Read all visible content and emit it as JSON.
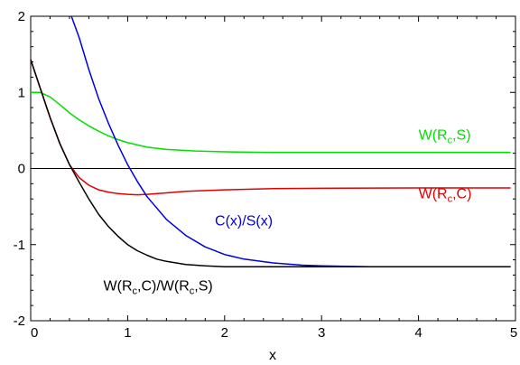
{
  "chart_data": {
    "type": "line",
    "title": "",
    "xlabel": "x",
    "ylabel": "",
    "xlim": [
      0,
      5
    ],
    "ylim": [
      -2,
      2
    ],
    "x_ticks": [
      "0",
      "1",
      "2",
      "3",
      "4",
      "5"
    ],
    "y_ticks": [
      "2",
      "1",
      "0",
      "-1",
      "-2"
    ],
    "grid": false,
    "zero_line": true,
    "series": [
      {
        "name": "W(Rc,S)",
        "label_parts": [
          "W(R",
          "c",
          ",S)"
        ],
        "color": "#00e000",
        "label_anchor": [
          4.0,
          0.38
        ],
        "points": [
          [
            0,
            1.0
          ],
          [
            0.1,
            1.0
          ],
          [
            0.2,
            0.94
          ],
          [
            0.3,
            0.84
          ],
          [
            0.4,
            0.73
          ],
          [
            0.5,
            0.64
          ],
          [
            0.6,
            0.56
          ],
          [
            0.7,
            0.49
          ],
          [
            0.8,
            0.43
          ],
          [
            0.9,
            0.38
          ],
          [
            1.0,
            0.34
          ],
          [
            1.2,
            0.28
          ],
          [
            1.4,
            0.25
          ],
          [
            1.7,
            0.23
          ],
          [
            2.0,
            0.22
          ],
          [
            2.5,
            0.21
          ],
          [
            3.0,
            0.21
          ],
          [
            4.0,
            0.21
          ],
          [
            4.95,
            0.21
          ]
        ]
      },
      {
        "name": "W(Rc,C)",
        "label_parts": [
          "W(R",
          "c",
          ",C)"
        ],
        "color": "#e00000",
        "label_anchor": [
          4.0,
          -0.39
        ],
        "points": [
          [
            0,
            1.43
          ],
          [
            0.1,
            1.05
          ],
          [
            0.2,
            0.67
          ],
          [
            0.3,
            0.33
          ],
          [
            0.4,
            0.05
          ],
          [
            0.5,
            -0.12
          ],
          [
            0.6,
            -0.22
          ],
          [
            0.7,
            -0.28
          ],
          [
            0.8,
            -0.31
          ],
          [
            0.9,
            -0.33
          ],
          [
            1.0,
            -0.34
          ],
          [
            1.1,
            -0.345
          ],
          [
            1.2,
            -0.34
          ],
          [
            1.4,
            -0.32
          ],
          [
            1.6,
            -0.3
          ],
          [
            2.0,
            -0.28
          ],
          [
            2.5,
            -0.265
          ],
          [
            3.0,
            -0.26
          ],
          [
            4.0,
            -0.255
          ],
          [
            4.95,
            -0.255
          ]
        ]
      },
      {
        "name": "C(x)/S(x)",
        "label_parts": [
          "C(x)/S(x)",
          "",
          ""
        ],
        "color": "#0000e0",
        "label_anchor": [
          1.9,
          -0.75
        ],
        "points": [
          [
            0.42,
            2.0
          ],
          [
            0.5,
            1.72
          ],
          [
            0.6,
            1.3
          ],
          [
            0.7,
            0.92
          ],
          [
            0.8,
            0.6
          ],
          [
            0.9,
            0.31
          ],
          [
            1.0,
            0.05
          ],
          [
            1.1,
            -0.17
          ],
          [
            1.2,
            -0.37
          ],
          [
            1.4,
            -0.67
          ],
          [
            1.6,
            -0.88
          ],
          [
            1.8,
            -1.03
          ],
          [
            2.0,
            -1.13
          ],
          [
            2.2,
            -1.19
          ],
          [
            2.5,
            -1.24
          ],
          [
            2.8,
            -1.27
          ],
          [
            3.0,
            -1.28
          ],
          [
            3.5,
            -1.29
          ],
          [
            4.0,
            -1.29
          ],
          [
            4.95,
            -1.29
          ]
        ]
      },
      {
        "name": "W(Rc,C)/W(Rc,S)",
        "label_parts": [
          "W(R",
          "c",
          ",C)/W(R",
          "c",
          ",S)"
        ],
        "color": "#000000",
        "label_anchor": [
          0.75,
          -1.6
        ],
        "points": [
          [
            0,
            1.43
          ],
          [
            0.1,
            1.05
          ],
          [
            0.2,
            0.67
          ],
          [
            0.3,
            0.33
          ],
          [
            0.4,
            0.05
          ],
          [
            0.5,
            -0.18
          ],
          [
            0.6,
            -0.4
          ],
          [
            0.7,
            -0.6
          ],
          [
            0.8,
            -0.76
          ],
          [
            0.9,
            -0.89
          ],
          [
            1.0,
            -1.0
          ],
          [
            1.1,
            -1.08
          ],
          [
            1.2,
            -1.14
          ],
          [
            1.3,
            -1.19
          ],
          [
            1.4,
            -1.22
          ],
          [
            1.6,
            -1.26
          ],
          [
            1.8,
            -1.28
          ],
          [
            2.0,
            -1.29
          ],
          [
            3.0,
            -1.29
          ],
          [
            4.0,
            -1.29
          ],
          [
            4.95,
            -1.29
          ]
        ]
      }
    ]
  }
}
